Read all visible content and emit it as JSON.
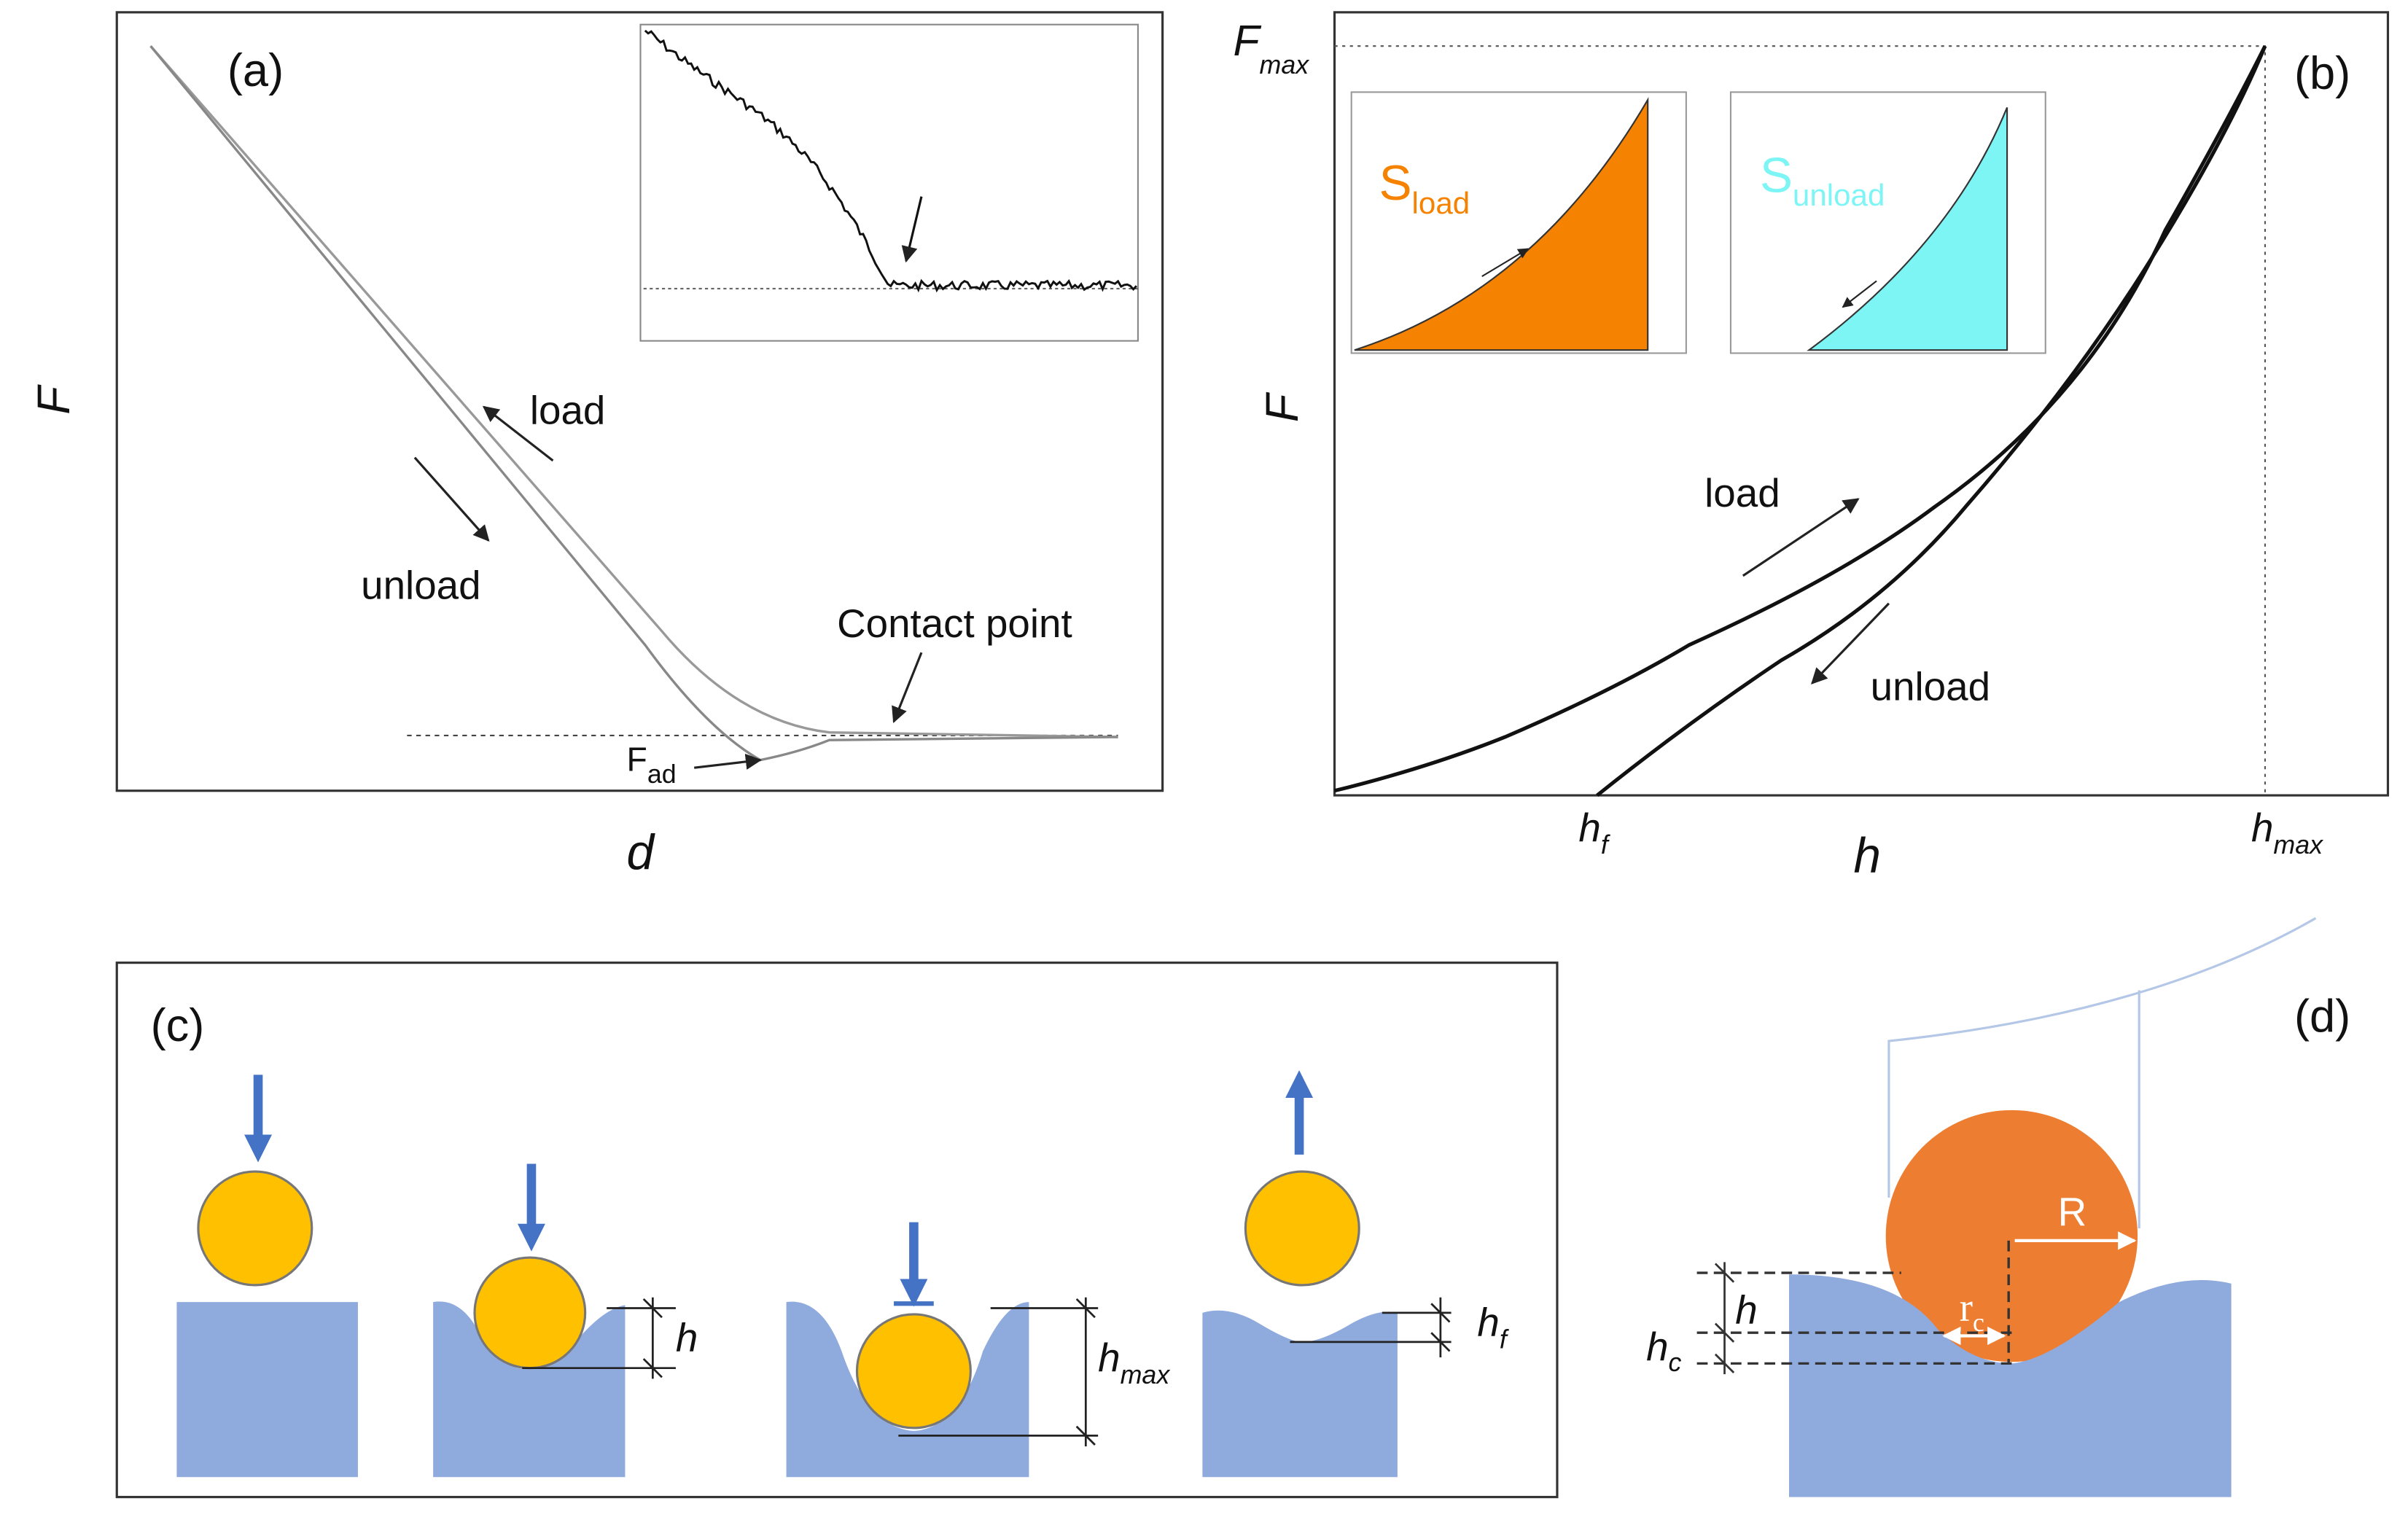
{
  "panel_a": {
    "label": "(a)",
    "y_axis": "F",
    "x_axis": "d",
    "load": "load",
    "unload": "unload",
    "contact": "Contact point",
    "fad": {
      "main": "F",
      "sub": "ad"
    }
  },
  "panel_b": {
    "label": "(b)",
    "y_axis": "F",
    "x_axis": "h",
    "load": "load",
    "unload": "unload",
    "fmax": {
      "main": "F",
      "sub": "max"
    },
    "hf": {
      "main": "h",
      "sub": "f"
    },
    "hmax": {
      "main": "h",
      "sub": "max"
    },
    "sload": {
      "main": "S",
      "sub": "load"
    },
    "sunload": {
      "main": "S",
      "sub": "unload"
    }
  },
  "panel_c": {
    "label": "(c)",
    "h": "h",
    "hmax": {
      "main": "h",
      "sub": "max"
    },
    "hf": {
      "main": "h",
      "sub": "f"
    }
  },
  "panel_d": {
    "label": "(d)",
    "R": "R",
    "rc": {
      "main": "r",
      "sub": "c"
    },
    "h": "h",
    "hc": {
      "main": "h",
      "sub": "c"
    }
  }
}
